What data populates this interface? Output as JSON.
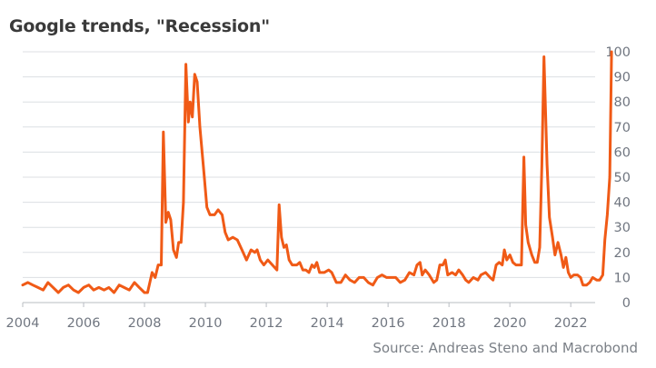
{
  "chart_data": {
    "type": "line",
    "title": "Google trends, \"Recession\"",
    "source": "Source: Andreas Steno and Macrobond",
    "xlabel": "",
    "ylabel": "",
    "xlim": [
      2004.0,
      2022.8
    ],
    "ylim": [
      0,
      100
    ],
    "x_ticks": [
      "2004",
      "2006",
      "2008",
      "2010",
      "2012",
      "2014",
      "2016",
      "2018",
      "2020",
      "2022"
    ],
    "y_ticks": [
      "0",
      "10",
      "20",
      "30",
      "40",
      "50",
      "60",
      "70",
      "80",
      "90",
      "100"
    ],
    "y_axis_position": "right",
    "grid": true,
    "line_color": "#f05a16",
    "series": [
      {
        "name": "",
        "points": [
          [
            2004.0,
            7
          ],
          [
            2004.17,
            8
          ],
          [
            2004.33,
            7
          ],
          [
            2004.5,
            6
          ],
          [
            2004.67,
            5
          ],
          [
            2004.83,
            8
          ],
          [
            2005.0,
            6
          ],
          [
            2005.17,
            4
          ],
          [
            2005.33,
            6
          ],
          [
            2005.5,
            7
          ],
          [
            2005.67,
            5
          ],
          [
            2005.83,
            4
          ],
          [
            2006.0,
            6
          ],
          [
            2006.17,
            7
          ],
          [
            2006.33,
            5
          ],
          [
            2006.5,
            6
          ],
          [
            2006.67,
            5
          ],
          [
            2006.83,
            6
          ],
          [
            2007.0,
            4
          ],
          [
            2007.17,
            7
          ],
          [
            2007.33,
            6
          ],
          [
            2007.5,
            5
          ],
          [
            2007.67,
            8
          ],
          [
            2007.83,
            6
          ],
          [
            2008.0,
            4
          ],
          [
            2008.1,
            4
          ],
          [
            2008.25,
            12
          ],
          [
            2008.35,
            10
          ],
          [
            2008.45,
            15
          ],
          [
            2008.55,
            15
          ],
          [
            2008.62,
            68
          ],
          [
            2008.7,
            32
          ],
          [
            2008.78,
            36
          ],
          [
            2008.86,
            33
          ],
          [
            2008.95,
            21
          ],
          [
            2009.05,
            18
          ],
          [
            2009.12,
            24
          ],
          [
            2009.2,
            24
          ],
          [
            2009.28,
            40
          ],
          [
            2009.36,
            95
          ],
          [
            2009.44,
            72
          ],
          [
            2009.5,
            80
          ],
          [
            2009.57,
            74
          ],
          [
            2009.65,
            91
          ],
          [
            2009.73,
            88
          ],
          [
            2009.82,
            70
          ],
          [
            2009.95,
            52
          ],
          [
            2010.05,
            38
          ],
          [
            2010.15,
            35
          ],
          [
            2010.3,
            35
          ],
          [
            2010.42,
            37
          ],
          [
            2010.55,
            35
          ],
          [
            2010.65,
            28
          ],
          [
            2010.75,
            25
          ],
          [
            2010.9,
            26
          ],
          [
            2011.05,
            25
          ],
          [
            2011.2,
            21
          ],
          [
            2011.35,
            17
          ],
          [
            2011.5,
            21
          ],
          [
            2011.62,
            20
          ],
          [
            2011.7,
            21
          ],
          [
            2011.8,
            17
          ],
          [
            2011.92,
            15
          ],
          [
            2012.05,
            17
          ],
          [
            2012.2,
            15
          ],
          [
            2012.35,
            13
          ],
          [
            2012.42,
            39
          ],
          [
            2012.5,
            26
          ],
          [
            2012.58,
            22
          ],
          [
            2012.66,
            23
          ],
          [
            2012.75,
            17
          ],
          [
            2012.85,
            15
          ],
          [
            2013.0,
            15
          ],
          [
            2013.1,
            16
          ],
          [
            2013.2,
            13
          ],
          [
            2013.3,
            13
          ],
          [
            2013.4,
            12
          ],
          [
            2013.5,
            15
          ],
          [
            2013.58,
            14
          ],
          [
            2013.66,
            16
          ],
          [
            2013.75,
            12
          ],
          [
            2013.9,
            12
          ],
          [
            2014.05,
            13
          ],
          [
            2014.15,
            12
          ],
          [
            2014.3,
            8
          ],
          [
            2014.45,
            8
          ],
          [
            2014.6,
            11
          ],
          [
            2014.75,
            9
          ],
          [
            2014.9,
            8
          ],
          [
            2015.05,
            10
          ],
          [
            2015.2,
            10
          ],
          [
            2015.35,
            8
          ],
          [
            2015.5,
            7
          ],
          [
            2015.65,
            10
          ],
          [
            2015.8,
            11
          ],
          [
            2015.95,
            10
          ],
          [
            2016.1,
            10
          ],
          [
            2016.25,
            10
          ],
          [
            2016.4,
            8
          ],
          [
            2016.55,
            9
          ],
          [
            2016.7,
            12
          ],
          [
            2016.85,
            11
          ],
          [
            2016.95,
            15
          ],
          [
            2017.05,
            16
          ],
          [
            2017.12,
            11
          ],
          [
            2017.22,
            13
          ],
          [
            2017.35,
            11
          ],
          [
            2017.5,
            8
          ],
          [
            2017.6,
            9
          ],
          [
            2017.7,
            15
          ],
          [
            2017.8,
            15
          ],
          [
            2017.88,
            17
          ],
          [
            2017.96,
            11
          ],
          [
            2018.1,
            12
          ],
          [
            2018.22,
            11
          ],
          [
            2018.32,
            13
          ],
          [
            2018.45,
            11
          ],
          [
            2018.55,
            9
          ],
          [
            2018.65,
            8
          ],
          [
            2018.8,
            10
          ],
          [
            2018.95,
            9
          ],
          [
            2019.05,
            11
          ],
          [
            2019.2,
            12
          ],
          [
            2019.35,
            10
          ],
          [
            2019.45,
            9
          ],
          [
            2019.55,
            15
          ],
          [
            2019.65,
            16
          ],
          [
            2019.75,
            15
          ],
          [
            2019.82,
            21
          ],
          [
            2019.9,
            17
          ],
          [
            2020.0,
            19
          ],
          [
            2020.1,
            16
          ],
          [
            2020.2,
            15
          ],
          [
            2020.3,
            15
          ],
          [
            2020.38,
            15
          ],
          [
            2020.46,
            58
          ],
          [
            2020.52,
            31
          ],
          [
            2020.6,
            24
          ],
          [
            2020.72,
            19
          ],
          [
            2020.82,
            16
          ],
          [
            2020.9,
            16
          ],
          [
            2020.98,
            22
          ],
          [
            2021.05,
            55
          ],
          [
            2021.12,
            98
          ],
          [
            2021.22,
            55
          ],
          [
            2021.3,
            34
          ],
          [
            2021.4,
            26
          ],
          [
            2021.48,
            19
          ],
          [
            2021.58,
            24
          ],
          [
            2021.68,
            19
          ],
          [
            2021.76,
            14
          ],
          [
            2021.84,
            18
          ],
          [
            2021.92,
            12
          ],
          [
            2022.0,
            10
          ],
          [
            2022.1,
            11
          ],
          [
            2022.22,
            11
          ],
          [
            2022.32,
            10
          ],
          [
            2022.4,
            7
          ],
          [
            2022.52,
            7
          ],
          [
            2022.62,
            8
          ],
          [
            2022.72,
            10
          ],
          [
            2022.85,
            9
          ],
          [
            2022.95,
            9
          ],
          [
            2023.05,
            11
          ],
          [
            2023.12,
            25
          ],
          [
            2023.2,
            35
          ],
          [
            2023.28,
            50
          ],
          [
            2023.34,
            100
          ]
        ]
      }
    ]
  }
}
